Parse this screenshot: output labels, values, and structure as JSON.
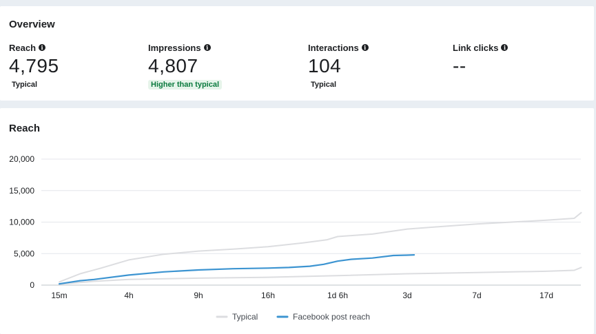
{
  "overview": {
    "title": "Overview",
    "metrics": [
      {
        "label": "Reach",
        "value": "4,795",
        "badge": "Typical",
        "badge_type": "typical"
      },
      {
        "label": "Impressions",
        "value": "4,807",
        "badge": "Higher than typical",
        "badge_type": "higher"
      },
      {
        "label": "Interactions",
        "value": "104",
        "badge": "Typical",
        "badge_type": "typical"
      },
      {
        "label": "Link clicks",
        "value": "--",
        "badge": "",
        "badge_type": "none"
      }
    ]
  },
  "reach": {
    "title": "Reach"
  },
  "colors": {
    "typical": "#dcdde0",
    "reach": "#3c94d1",
    "grid": "#e4e6eb",
    "badge_green": "#0b7a3e"
  },
  "chart_data": {
    "type": "line",
    "title": "Reach",
    "xlabel": "",
    "ylabel": "",
    "x_ticks": [
      "15m",
      "4h",
      "9h",
      "16h",
      "1d 6h",
      "3d",
      "7d",
      "17d"
    ],
    "y_ticks": [
      "0",
      "5,000",
      "10,000",
      "15,000",
      "20,000"
    ],
    "ylim": [
      0,
      20000
    ],
    "grid": true,
    "legend_position": "bottom",
    "series": [
      {
        "name": "Typical",
        "role": "band-upper",
        "x": [
          0,
          0.3,
          0.6,
          1,
          1.5,
          2,
          2.5,
          3,
          3.5,
          3.85,
          4,
          4.5,
          5,
          5.5,
          6,
          6.5,
          7,
          7.4,
          7.5
        ],
        "values": [
          500,
          1800,
          2700,
          4000,
          4900,
          5400,
          5700,
          6100,
          6700,
          7200,
          7700,
          8100,
          8900,
          9300,
          9700,
          10000,
          10300,
          10600,
          11500
        ]
      },
      {
        "name": "Typical",
        "role": "band-lower",
        "x": [
          0,
          0.5,
          1,
          2,
          3,
          4,
          5,
          6,
          7,
          7.4,
          7.5
        ],
        "values": [
          150,
          600,
          900,
          1100,
          1250,
          1500,
          1800,
          2000,
          2200,
          2350,
          2800
        ]
      },
      {
        "name": "Facebook post reach",
        "role": "main",
        "x": [
          0,
          0.3,
          0.5,
          1,
          1.5,
          2,
          2.5,
          3,
          3.3,
          3.6,
          3.8,
          4,
          4.2,
          4.5,
          4.8,
          5,
          5.1
        ],
        "values": [
          200,
          700,
          900,
          1600,
          2100,
          2400,
          2600,
          2700,
          2800,
          3000,
          3300,
          3800,
          4100,
          4300,
          4700,
          4750,
          4795
        ]
      }
    ],
    "legend": [
      {
        "label": "Typical",
        "color": "#dcdde0"
      },
      {
        "label": "Facebook post reach",
        "color": "#3c94d1"
      }
    ]
  }
}
